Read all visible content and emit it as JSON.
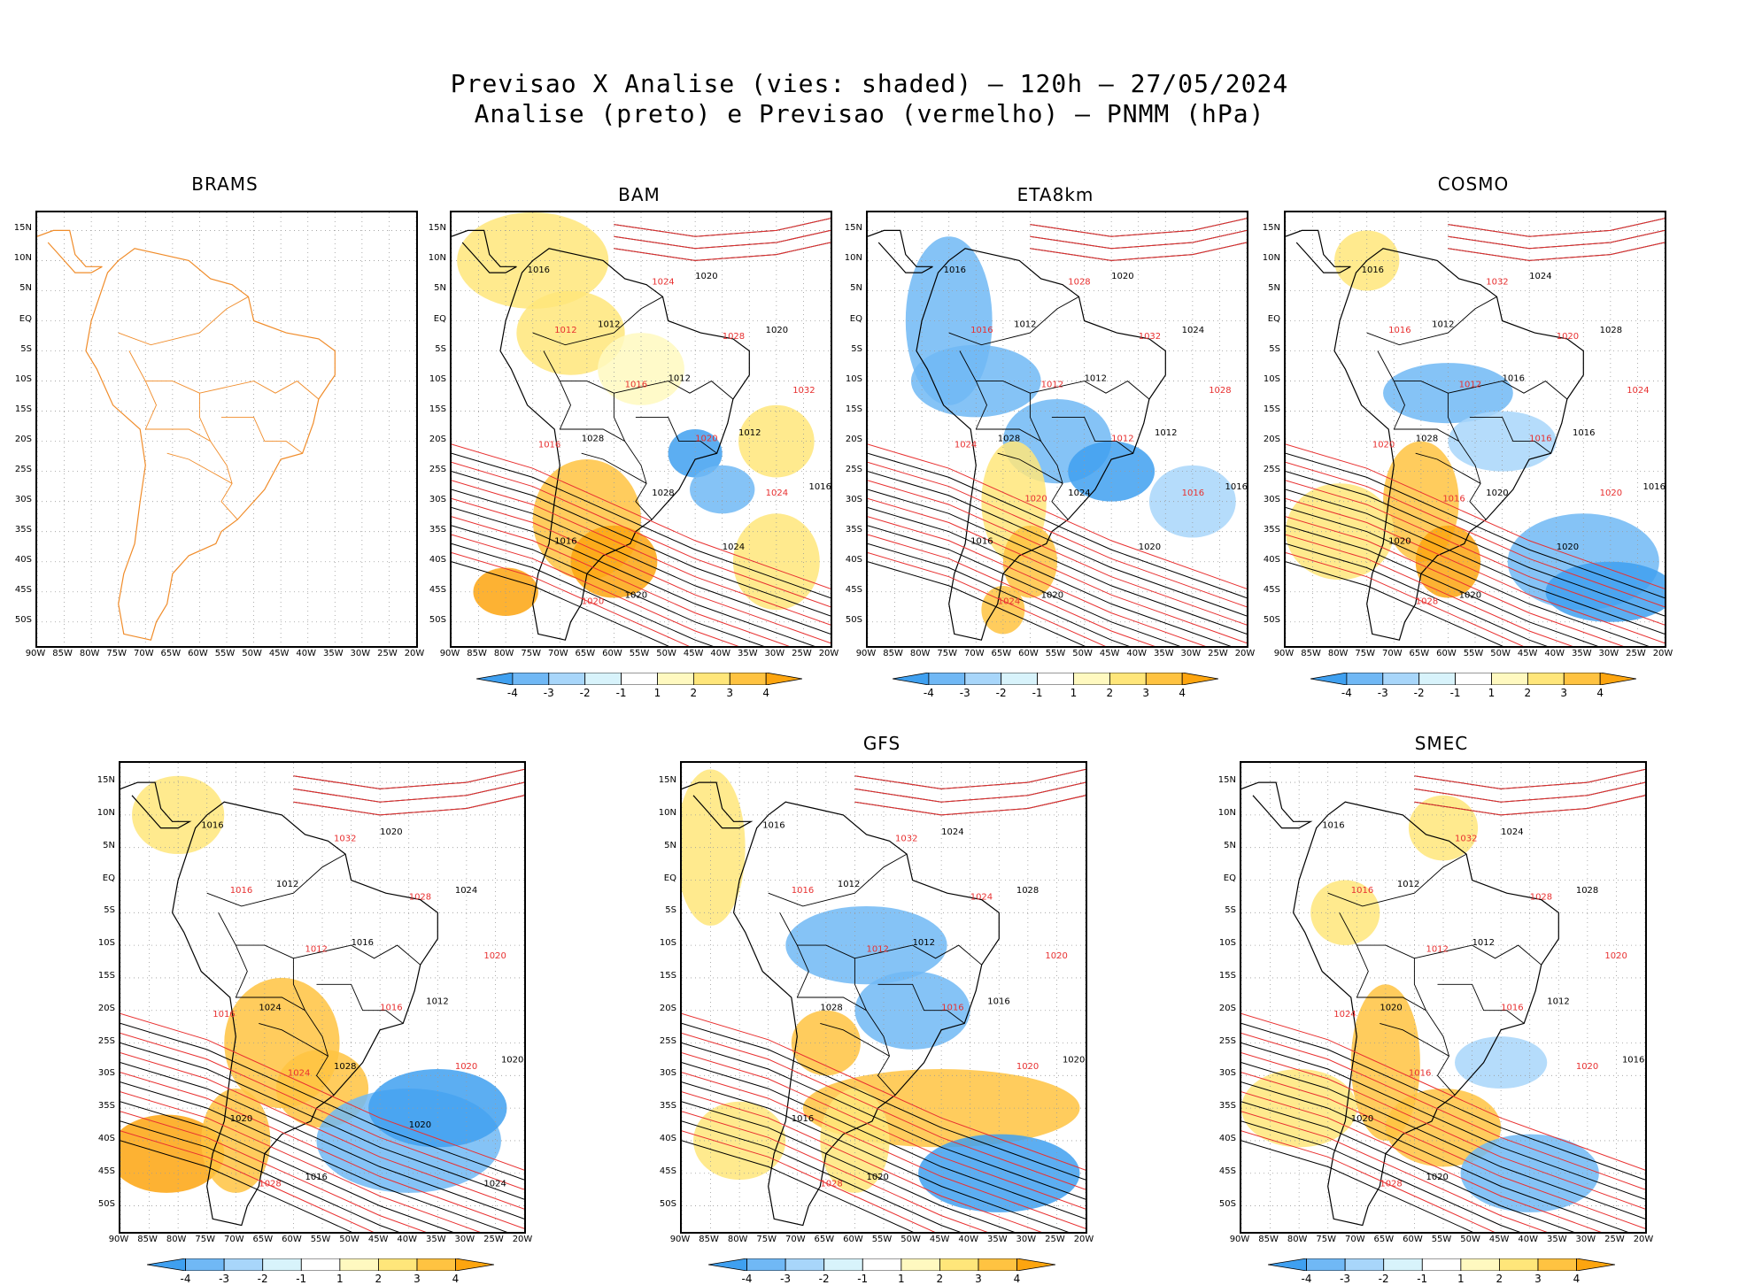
{
  "title_line1": "Previsao X Analise (vies: shaded) – 120h – 27/05/2024",
  "title_line2": "Analise (preto) e Previsao (vermelho) – PNMM (hPa)",
  "axis": {
    "lat_labels": [
      "15N",
      "10N",
      "5N",
      "EQ",
      "5S",
      "10S",
      "15S",
      "20S",
      "25S",
      "30S",
      "35S",
      "40S",
      "45S",
      "50S"
    ],
    "lon_labels": [
      "90W",
      "85W",
      "80W",
      "75W",
      "70W",
      "65W",
      "60W",
      "55W",
      "50W",
      "45W",
      "40W",
      "35W",
      "30W",
      "25W",
      "20W"
    ]
  },
  "colorbar": {
    "labels": [
      "-4",
      "-3",
      "-2",
      "-1",
      "1",
      "2",
      "3",
      "4"
    ],
    "colors": [
      "#3fa0f0",
      "#70b8f5",
      "#a8d6fa",
      "#d8f3fb",
      "#ffffff",
      "#fff9c0",
      "#ffe67a",
      "#ffc341",
      "#fda50f"
    ]
  },
  "colors": {
    "analysis_contour": "#000000",
    "forecast_contour": "#e83030",
    "brams_border": "#f08c2a",
    "grid": "#9a9a9a"
  },
  "panels": [
    {
      "id": "brams",
      "title": "BRAMS",
      "colorbar": false,
      "isobar_analysis": [],
      "isobar_forecast": []
    },
    {
      "id": "bam",
      "title": "BAM",
      "colorbar": true,
      "isobar_analysis": [
        "1016",
        "1012",
        "1012",
        "1012",
        "1016",
        "1016",
        "1020",
        "1020",
        "1020",
        "1024",
        "1028",
        "1028",
        "1024"
      ],
      "isobar_forecast": [
        "1012",
        "1016",
        "1020",
        "1024",
        "1028",
        "1020",
        "1024",
        "1028",
        "1032",
        "1016"
      ]
    },
    {
      "id": "eta8km",
      "title": "ETA8km",
      "colorbar": true,
      "isobar_analysis": [
        "1016",
        "1012",
        "1012",
        "1012",
        "1016",
        "1016",
        "1020",
        "1020",
        "1024",
        "1028",
        "1028",
        "1024",
        "1020"
      ],
      "isobar_forecast": [
        "1016",
        "1012",
        "1012",
        "1016",
        "1020",
        "1024",
        "1028",
        "1032",
        "1028",
        "1024",
        "1020"
      ]
    },
    {
      "id": "cosmo",
      "title": "COSMO",
      "colorbar": true,
      "isobar_analysis": [
        "1016",
        "1012",
        "1016",
        "1016",
        "1016",
        "1020",
        "1020",
        "1024",
        "1028",
        "1024",
        "1028",
        "1020",
        "1020"
      ],
      "isobar_forecast": [
        "1016",
        "1012",
        "1016",
        "1020",
        "1024",
        "1028",
        "1032",
        "1020",
        "1024",
        "1020",
        "1016"
      ]
    },
    {
      "id": "model5",
      "title": "",
      "colorbar": true,
      "isobar_analysis": [
        "1016",
        "1012",
        "1016",
        "1012",
        "1020",
        "1020",
        "1016",
        "1020",
        "1024",
        "1028",
        "1024",
        "1028",
        "1020",
        "1024"
      ],
      "isobar_forecast": [
        "1016",
        "1012",
        "1016",
        "1020",
        "1024",
        "1028",
        "1032",
        "1028",
        "1020",
        "1016",
        "1024"
      ]
    },
    {
      "id": "gfs",
      "title": "GFS",
      "colorbar": true,
      "isobar_analysis": [
        "1016",
        "1012",
        "1012",
        "1016",
        "1020",
        "1016",
        "1020",
        "1024",
        "1028",
        "1024",
        "1028"
      ],
      "isobar_forecast": [
        "1016",
        "1012",
        "1016",
        "1020",
        "1024",
        "1028",
        "1032",
        "1024",
        "1020"
      ]
    },
    {
      "id": "smec",
      "title": "SMEC",
      "colorbar": true,
      "isobar_analysis": [
        "1016",
        "1012",
        "1012",
        "1012",
        "1016",
        "1020",
        "1020",
        "1024",
        "1028",
        "1024",
        "1020"
      ],
      "isobar_forecast": [
        "1016",
        "1012",
        "1016",
        "1020",
        "1024",
        "1028",
        "1032",
        "1028",
        "1020",
        "1024",
        "1016"
      ]
    }
  ]
}
